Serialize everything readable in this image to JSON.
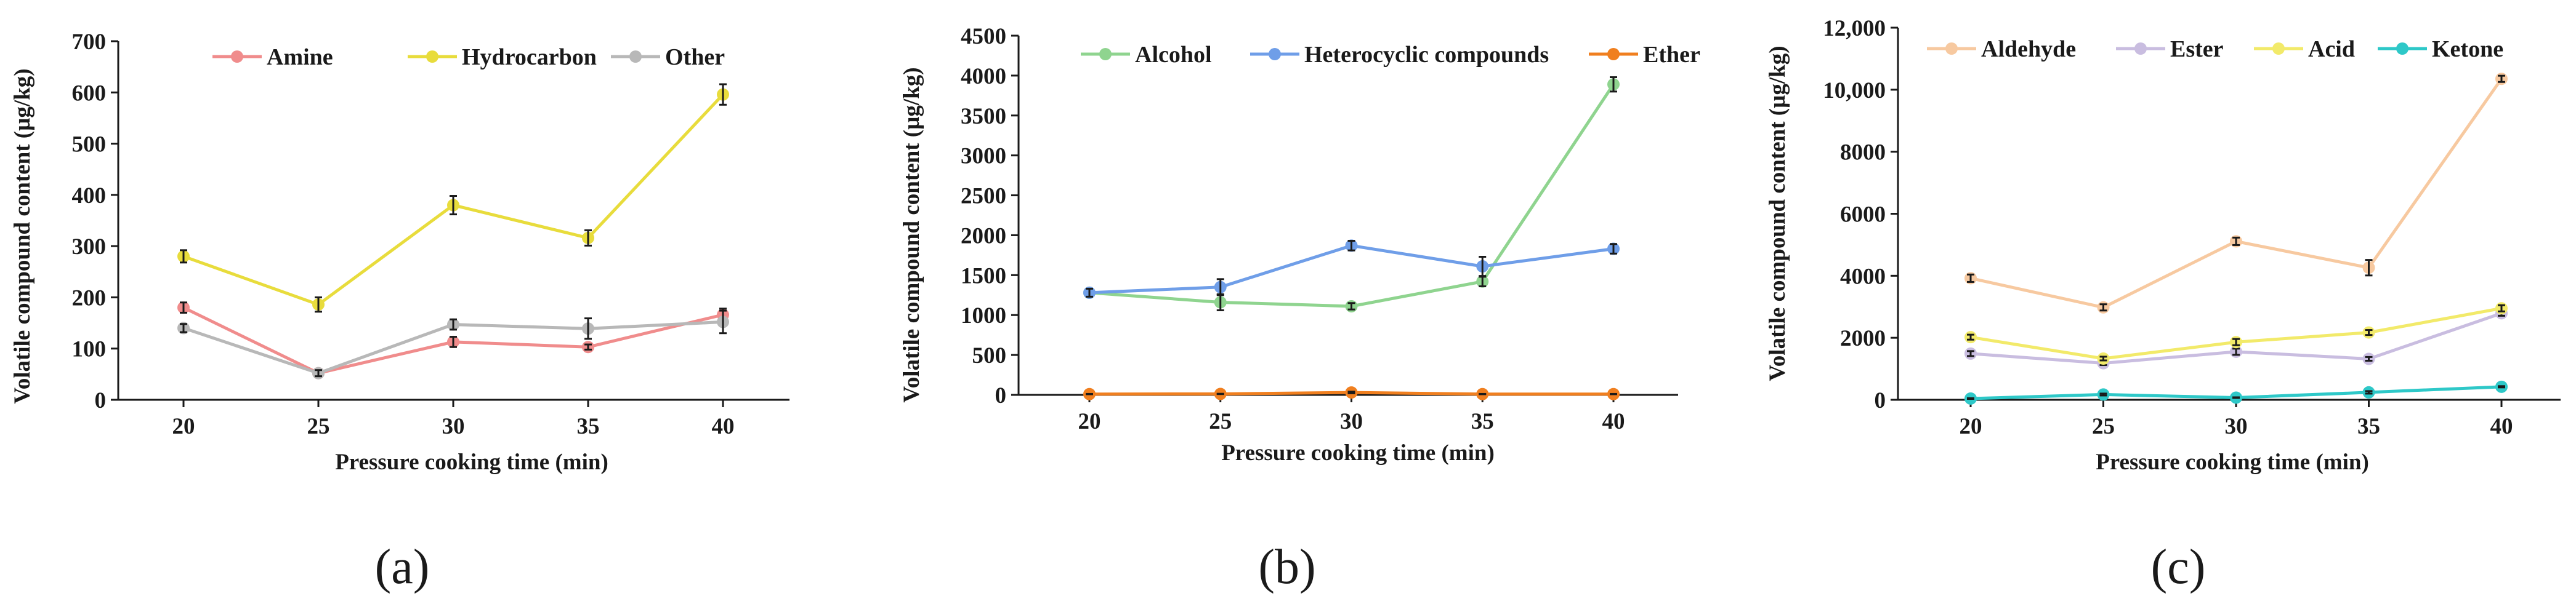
{
  "chart_data": [
    {
      "type": "line",
      "panel_label": "(a)",
      "xlabel": "Pressure cooking time (min)",
      "ylabel": "Volatile compound content (µg/kg)",
      "x": [
        20,
        25,
        30,
        35,
        40
      ],
      "x_tick_labels": [
        "20",
        "25",
        "30",
        "35",
        "40"
      ],
      "ylim": [
        0,
        700
      ],
      "y_ticks": [
        0,
        100,
        200,
        300,
        400,
        500,
        600,
        700
      ],
      "y_tick_labels": [
        "0",
        "100",
        "200",
        "300",
        "400",
        "500",
        "600",
        "700"
      ],
      "legend_position": "top",
      "series": [
        {
          "name": "Amine",
          "color": "#f08c8c",
          "values": [
            180,
            52,
            113,
            103,
            166
          ],
          "errors": [
            10,
            6,
            10,
            5,
            12
          ]
        },
        {
          "name": "Hydrocarbon",
          "color": "#e8dc3c",
          "values": [
            280,
            186,
            380,
            316,
            596
          ],
          "errors": [
            12,
            14,
            18,
            15,
            20
          ]
        },
        {
          "name": "Other",
          "color": "#b8b8b8",
          "values": [
            140,
            52,
            147,
            139,
            152
          ],
          "errors": [
            8,
            6,
            10,
            20,
            22
          ]
        }
      ]
    },
    {
      "type": "line",
      "panel_label": "(b)",
      "xlabel": "Pressure cooking time (min)",
      "ylabel": "Volatile compound content (µg/kg)",
      "x": [
        20,
        25,
        30,
        35,
        40
      ],
      "x_tick_labels": [
        "20",
        "25",
        "30",
        "35",
        "40"
      ],
      "ylim": [
        0,
        4500
      ],
      "y_ticks": [
        0,
        500,
        1000,
        1500,
        2000,
        2500,
        3000,
        3500,
        4000,
        4500
      ],
      "y_tick_labels": [
        "0",
        "500",
        "1000",
        "1500",
        "2000",
        "2500",
        "3000",
        "3500",
        "4000",
        "4500"
      ],
      "legend_position": "top",
      "series": [
        {
          "name": "Alcohol",
          "color": "#8fd48f",
          "values": [
            1280,
            1160,
            1110,
            1420,
            3890
          ],
          "errors": [
            40,
            100,
            40,
            60,
            90
          ]
        },
        {
          "name": "Heterocyclic compounds",
          "color": "#6f9ee8",
          "values": [
            1280,
            1350,
            1870,
            1610,
            1830
          ],
          "errors": [
            50,
            100,
            60,
            120,
            60
          ]
        },
        {
          "name": "Ether",
          "color": "#f07f1f",
          "values": [
            10,
            12,
            30,
            10,
            10
          ],
          "errors": [
            2,
            2,
            10,
            2,
            2
          ]
        }
      ]
    },
    {
      "type": "line",
      "panel_label": "(c)",
      "xlabel": "Pressure cooking time (min)",
      "ylabel": "Volatile compound content (µg/kg)",
      "x": [
        20,
        25,
        30,
        35,
        40
      ],
      "x_tick_labels": [
        "20",
        "25",
        "30",
        "35",
        "40"
      ],
      "ylim": [
        0,
        12000
      ],
      "y_ticks": [
        0,
        2000,
        4000,
        6000,
        8000,
        10000,
        12000
      ],
      "y_tick_labels": [
        "0",
        "2000",
        "4000",
        "6000",
        "8000",
        "10,000",
        "12,000"
      ],
      "legend_position": "top",
      "series": [
        {
          "name": "Aldehyde",
          "color": "#f7c9a0",
          "values": [
            3920,
            2980,
            5110,
            4260,
            10350
          ],
          "errors": [
            120,
            100,
            120,
            250,
            100
          ]
        },
        {
          "name": "Ester",
          "color": "#c9bde0",
          "values": [
            1490,
            1180,
            1550,
            1320,
            2790
          ],
          "errors": [
            80,
            60,
            100,
            60,
            80
          ]
        },
        {
          "name": "Acid",
          "color": "#f2ea6a",
          "values": [
            2020,
            1330,
            1860,
            2170,
            2950
          ],
          "errors": [
            80,
            60,
            100,
            80,
            100
          ]
        },
        {
          "name": "Ketone",
          "color": "#2ec8c8",
          "values": [
            40,
            170,
            70,
            240,
            420
          ],
          "errors": [
            10,
            30,
            10,
            40,
            20
          ]
        }
      ]
    }
  ]
}
